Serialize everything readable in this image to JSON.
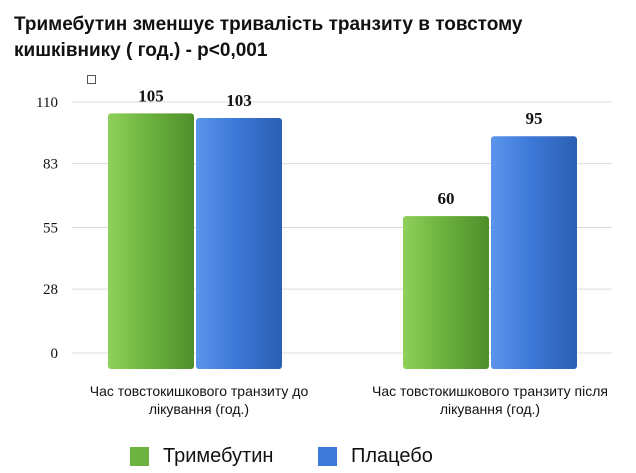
{
  "chart_data": {
    "type": "bar",
    "title": "Тримебутин зменшує тривалість транзиту в товстому кишківнику ( год.) - p<0,001",
    "categories": [
      "Час товстокишкового транзиту до лікування (год.)",
      "Час товстокишкового транзиту після лікування (год.)"
    ],
    "series": [
      {
        "name": "Тримебутин",
        "values": [
          105,
          60
        ],
        "color": "#6db33f"
      },
      {
        "name": "Плацебо",
        "values": [
          103,
          95
        ],
        "color": "#3d79d8"
      }
    ],
    "y_ticks": [
      "0",
      "28",
      "55",
      "83",
      "110"
    ],
    "ylim": [
      0,
      110
    ],
    "grid": true,
    "legend_position": "bottom"
  }
}
